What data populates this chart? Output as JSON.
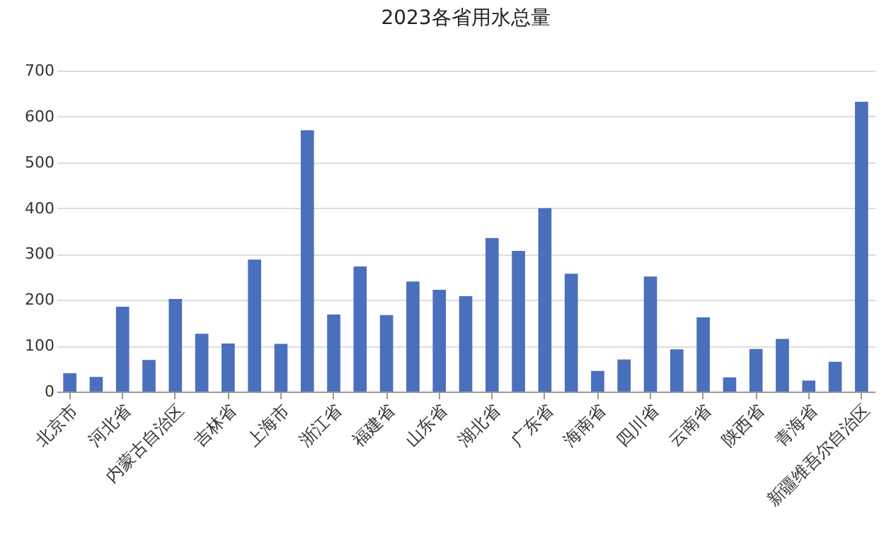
{
  "chart_data": {
    "type": "bar",
    "title": "2023各省用水总量",
    "categories": [
      "北京市",
      null,
      "河北省",
      null,
      "内蒙古自治区",
      null,
      "吉林省",
      null,
      "上海市",
      null,
      "浙江省",
      null,
      "福建省",
      null,
      "山东省",
      null,
      "湖北省",
      null,
      "广东省",
      null,
      "海南省",
      null,
      "四川省",
      null,
      "云南省",
      null,
      "陕西省",
      null,
      "青海省",
      null,
      "新疆维吾尔自治区"
    ],
    "values": [
      40,
      32,
      185,
      69,
      202,
      126,
      105,
      288,
      104,
      570,
      168,
      273,
      167,
      240,
      222,
      208,
      335,
      307,
      400,
      257,
      45,
      70,
      251,
      92,
      162,
      31,
      93,
      115,
      24,
      65,
      632
    ],
    "color": "#4a6fbd",
    "ylim": [
      0,
      700
    ],
    "yticks": [
      0,
      100,
      200,
      300,
      400,
      500,
      600,
      700
    ],
    "grid": "y"
  }
}
